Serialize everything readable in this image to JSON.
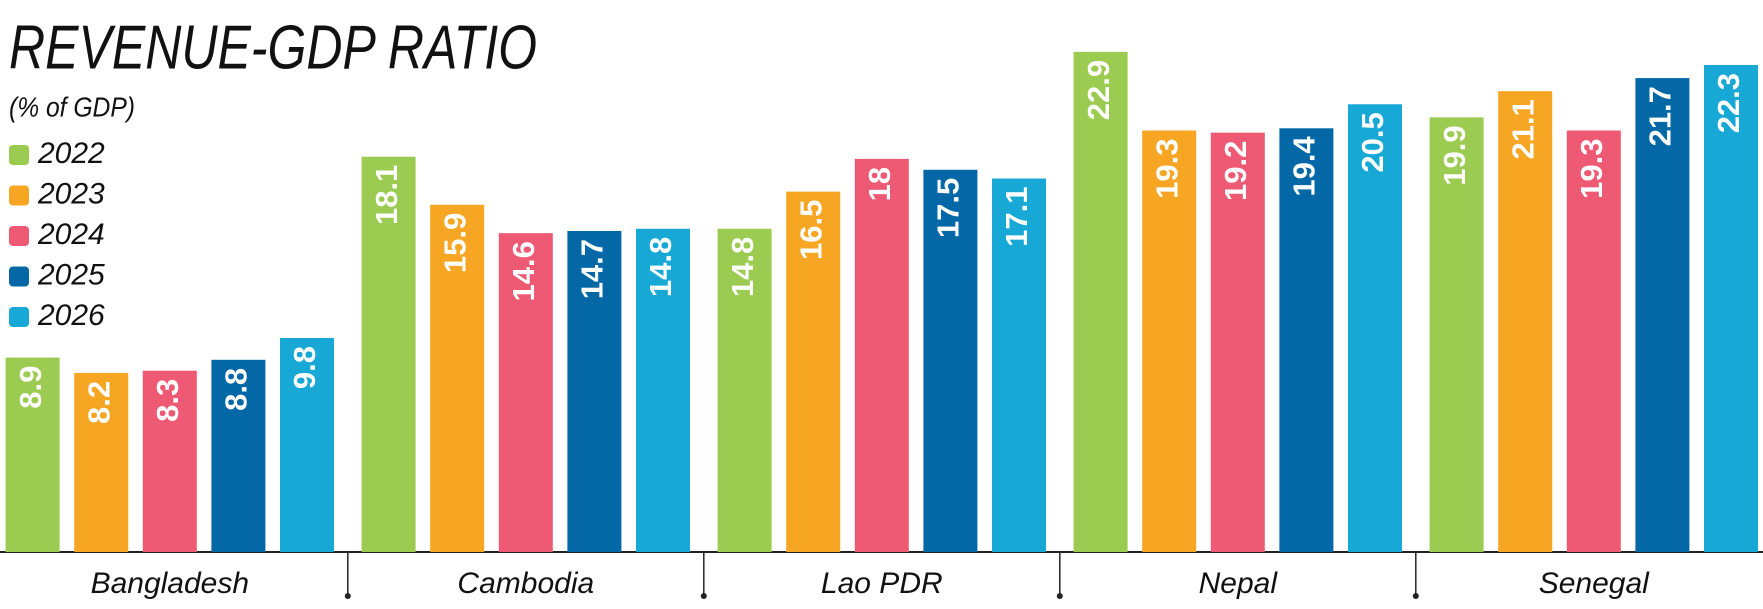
{
  "chart_data": {
    "type": "bar",
    "title": "REVENUE-GDP RATIO",
    "subtitle": "(% of GDP)",
    "categories": [
      "Bangladesh",
      "Cambodia",
      "Lao PDR",
      "Nepal",
      "Senegal"
    ],
    "series": [
      {
        "name": "2022",
        "color": "#9bcb50",
        "values": [
          8.9,
          18.1,
          14.8,
          22.9,
          19.9
        ]
      },
      {
        "name": "2023",
        "color": "#f6a623",
        "values": [
          8.2,
          15.9,
          16.5,
          19.3,
          21.1
        ]
      },
      {
        "name": "2024",
        "color": "#ee5a73",
        "values": [
          8.3,
          14.6,
          18,
          19.2,
          19.3
        ]
      },
      {
        "name": "2025",
        "color": "#0468a7",
        "values": [
          8.8,
          14.7,
          17.5,
          19.4,
          21.7
        ]
      },
      {
        "name": "2026",
        "color": "#17a8d6",
        "values": [
          9.8,
          14.8,
          17.1,
          20.5,
          22.3
        ]
      }
    ],
    "ylim": [
      0,
      25
    ]
  }
}
